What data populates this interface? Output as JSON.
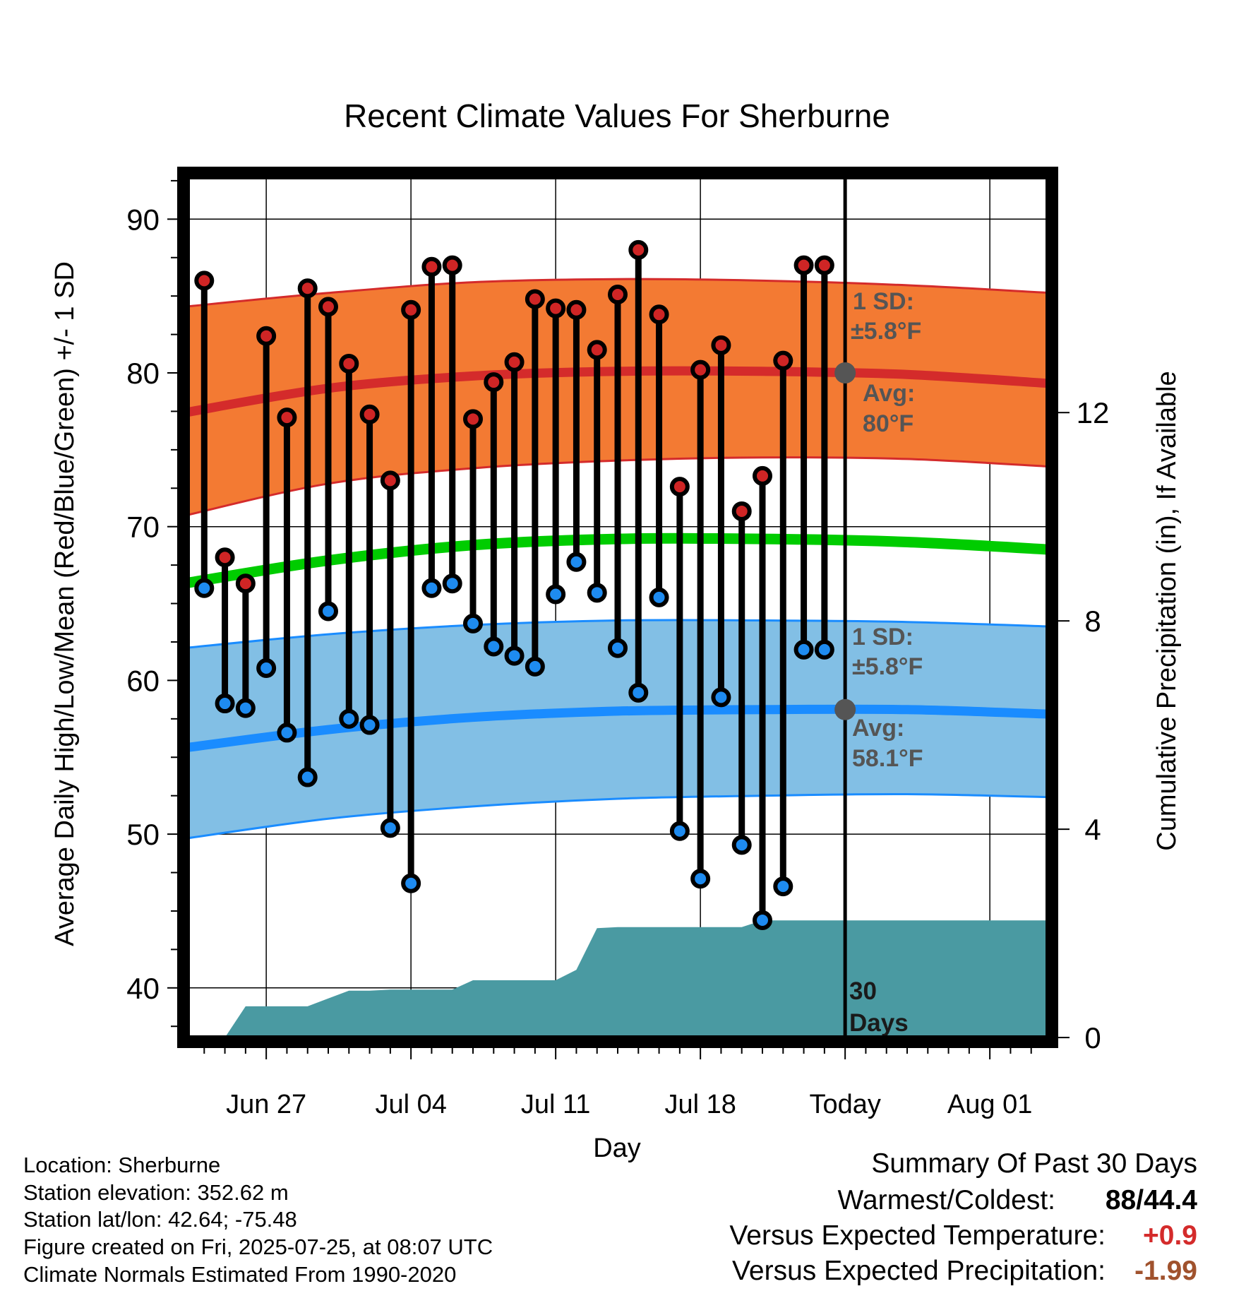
{
  "chart_data": {
    "type": "line",
    "title": "Recent Climate Values For Sherburne",
    "xlabel": "Day",
    "ylabel": "Average Daily High/Low/Mean (Red/Blue/Green) +/- 1 SD",
    "y2label": "Cumulative Precipitation (in), If Available",
    "ylim": [
      36.5,
      93
    ],
    "y2lim": [
      -0.08,
      16.6
    ],
    "xlim": [
      "2025-06-23",
      "2025-08-04"
    ],
    "x_tick_labels": [
      "Jun 27",
      "Jul 04",
      "Jul 11",
      "Jul 18",
      "Today",
      "Aug 01"
    ],
    "x_tick_dates": [
      "2025-06-27",
      "2025-07-04",
      "2025-07-11",
      "2025-07-18",
      "2025-07-25",
      "2025-08-01"
    ],
    "y_ticks": [
      40,
      50,
      60,
      70,
      80,
      90
    ],
    "y2_ticks": [
      0,
      4,
      8,
      12
    ],
    "grid": true,
    "today": "2025-07-25",
    "curve_dates": [
      "2025-06-23",
      "2025-06-30",
      "2025-07-07",
      "2025-07-14",
      "2025-07-21",
      "2025-07-28",
      "2025-08-04"
    ],
    "normal_high": [
      77.4,
      79.0,
      79.8,
      80.1,
      80.1,
      79.9,
      79.3
    ],
    "normal_high_upper": [
      84.3,
      85.2,
      85.9,
      86.1,
      86.0,
      85.7,
      85.2
    ],
    "normal_high_lower": [
      70.7,
      72.8,
      73.8,
      74.3,
      74.5,
      74.4,
      73.9
    ],
    "normal_mean": [
      66.3,
      67.8,
      68.8,
      69.2,
      69.2,
      69.0,
      68.5
    ],
    "normal_low": [
      55.6,
      56.8,
      57.6,
      58.0,
      58.1,
      58.1,
      57.8
    ],
    "normal_low_upper": [
      62.1,
      63.0,
      63.6,
      63.9,
      63.9,
      63.8,
      63.5
    ],
    "normal_low_lower": [
      49.7,
      51.0,
      51.8,
      52.3,
      52.5,
      52.6,
      52.4
    ],
    "days": [
      "2025-06-24",
      "2025-06-25",
      "2025-06-26",
      "2025-06-27",
      "2025-06-28",
      "2025-06-29",
      "2025-06-30",
      "2025-07-01",
      "2025-07-02",
      "2025-07-03",
      "2025-07-04",
      "2025-07-05",
      "2025-07-06",
      "2025-07-07",
      "2025-07-08",
      "2025-07-09",
      "2025-07-10",
      "2025-07-11",
      "2025-07-12",
      "2025-07-13",
      "2025-07-14",
      "2025-07-15",
      "2025-07-16",
      "2025-07-17",
      "2025-07-18",
      "2025-07-19",
      "2025-07-20",
      "2025-07-21",
      "2025-07-22",
      "2025-07-23",
      "2025-07-24"
    ],
    "highs": [
      86,
      68,
      66.3,
      82.4,
      77.1,
      85.5,
      84.3,
      80.6,
      77.3,
      73,
      84.1,
      86.9,
      87,
      77,
      79.4,
      80.7,
      84.8,
      84.2,
      84.1,
      81.5,
      85.1,
      88,
      83.8,
      72.6,
      80.2,
      81.8,
      71,
      73.3,
      80.8,
      87,
      87
    ],
    "lows": [
      66,
      58.5,
      58.2,
      60.8,
      56.6,
      53.7,
      64.5,
      57.5,
      57.1,
      50.4,
      46.8,
      66,
      66.3,
      63.7,
      62.2,
      61.6,
      60.9,
      65.6,
      67.7,
      65.7,
      62.1,
      59.2,
      65.4,
      50.2,
      47.1,
      58.9,
      49.3,
      44.4,
      46.6,
      62,
      62
    ],
    "precip_dates": [
      "2025-06-24",
      "2025-06-25",
      "2025-06-26",
      "2025-06-27",
      "2025-06-28",
      "2025-06-29",
      "2025-06-30",
      "2025-07-01",
      "2025-07-02",
      "2025-07-03",
      "2025-07-04",
      "2025-07-05",
      "2025-07-06",
      "2025-07-07",
      "2025-07-08",
      "2025-07-09",
      "2025-07-10",
      "2025-07-11",
      "2025-07-12",
      "2025-07-13",
      "2025-07-14",
      "2025-07-15",
      "2025-07-16",
      "2025-07-17",
      "2025-07-18",
      "2025-07-19",
      "2025-07-20",
      "2025-07-21",
      "2025-07-22",
      "2025-07-23",
      "2025-07-24",
      "2025-08-04"
    ],
    "precip": [
      0,
      0,
      0.6,
      0.6,
      0.6,
      0.6,
      0.75,
      0.9,
      0.9,
      0.92,
      0.92,
      0.92,
      0.92,
      1.1,
      1.1,
      1.1,
      1.1,
      1.1,
      1.3,
      2.1,
      2.12,
      2.12,
      2.12,
      2.12,
      2.12,
      2.12,
      2.12,
      2.25,
      2.25,
      2.25,
      2.25,
      2.25
    ],
    "colors": {
      "high_band": "#f37a33",
      "high_line": "#d42b2b",
      "mean_line": "#00cc00",
      "low_band": "#82bfe5",
      "low_line": "#1a8cff",
      "precip": "#4a9aa2",
      "high_dot": "#cf2525",
      "low_dot": "#1e8bf0",
      "annot": "#555555"
    },
    "annotations": {
      "high_sd_label": "1 SD:",
      "high_sd_value": "±5.8°F",
      "high_avg_label": "Avg:",
      "high_avg_value": "80°F",
      "low_sd_label": "1 SD:",
      "low_sd_value": "±5.8°F",
      "low_avg_label": "Avg:",
      "low_avg_value": "58.1°F",
      "days_label_1": "30",
      "days_label_2": "Days"
    }
  },
  "info": {
    "location": "Location: Sherburne",
    "elevation": "Station elevation: 352.62 m",
    "latlon": "Station lat/lon: 42.64; -75.48",
    "created": "Figure created on Fri, 2025-07-25, at 08:07 UTC",
    "normals": "Climate Normals Estimated From 1990-2020"
  },
  "summary": {
    "heading": "Summary Of Past 30 Days",
    "warm_cold_label": "Warmest/Coldest:",
    "warmest": "88",
    "slash": "/",
    "coldest": "44.4",
    "temp_label": "Versus Expected Temperature:",
    "temp_value": "+0.9",
    "precip_label": "Versus Expected Precipitation:",
    "precip_value": "-1.99",
    "colors": {
      "warmest": "#d42b2b",
      "coldest": "#1a8cff",
      "temp": "#d42b2b",
      "precip": "#a0522d"
    }
  }
}
